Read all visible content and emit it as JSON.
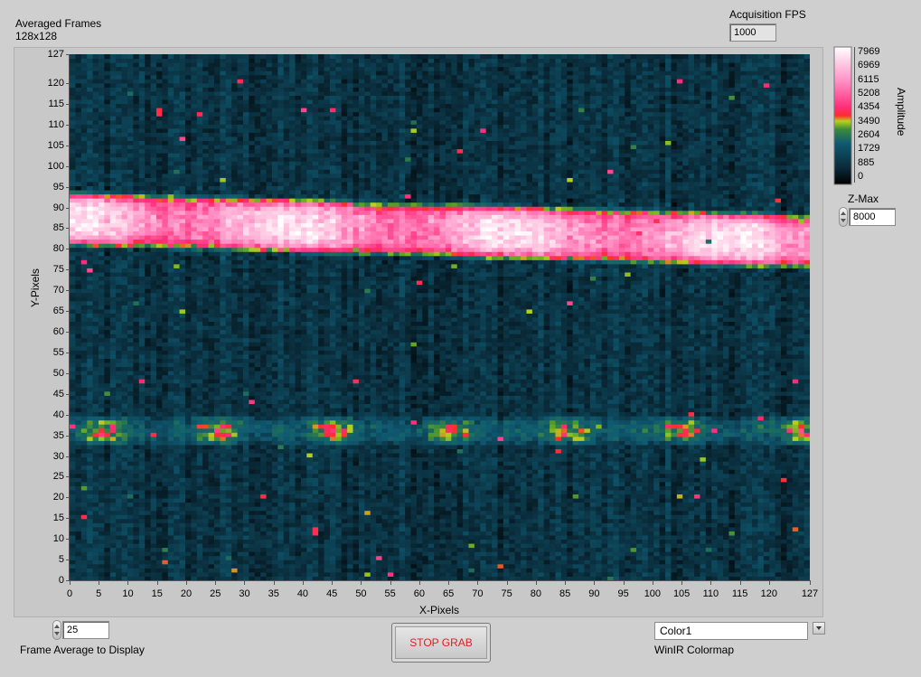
{
  "graph": {
    "title": "Averaged Frames",
    "subtitle": "128x128",
    "x_label": "X-Pixels",
    "y_label": "Y-Pixels",
    "x_ticks": [
      "0",
      "5",
      "10",
      "15",
      "20",
      "25",
      "30",
      "35",
      "40",
      "45",
      "50",
      "55",
      "60",
      "65",
      "70",
      "75",
      "80",
      "85",
      "90",
      "95",
      "100",
      "105",
      "110",
      "115",
      "120",
      "127"
    ],
    "y_ticks": [
      "0",
      "5",
      "10",
      "15",
      "20",
      "25",
      "30",
      "35",
      "40",
      "45",
      "50",
      "55",
      "60",
      "65",
      "70",
      "75",
      "80",
      "85",
      "90",
      "95",
      "100",
      "105",
      "110",
      "115",
      "120",
      "127"
    ]
  },
  "acquisition": {
    "label": "Acquisition FPS",
    "value": "1000"
  },
  "colorbar": {
    "label": "Amplitude",
    "ticks": [
      "7969",
      "6969",
      "6115",
      "5208",
      "4354",
      "3490",
      "2604",
      "1729",
      "885",
      "0"
    ]
  },
  "zmax": {
    "label": "Z-Max",
    "value": "8000"
  },
  "frame_average": {
    "label": "Frame Average to Display",
    "value": "25"
  },
  "stop_button": {
    "label": "STOP GRAB"
  },
  "colormap": {
    "label": "WinIR Colormap",
    "value": "Color1"
  },
  "chart_data": {
    "type": "heatmap",
    "title": "Averaged Frames",
    "subtitle": "128x128",
    "xlabel": "X-Pixels",
    "ylabel": "Y-Pixels",
    "xlim": [
      0,
      127
    ],
    "ylim": [
      0,
      127
    ],
    "zlim": [
      0,
      8000
    ],
    "zlabel": "Amplitude",
    "colormap": "WinIR Color1",
    "bands": [
      {
        "name_visible": false,
        "y_center_left": 87.5,
        "y_center_right": 82,
        "half_width": 7,
        "peak_amplitude": 7500
      },
      {
        "name_visible": false,
        "y_center": 36,
        "half_width": 4,
        "peak_amplitude": 4200
      }
    ],
    "background_amplitude": 1200
  },
  "colors": {
    "panel_bg": "#cfcfcf",
    "background_teal": "#0f4f64",
    "hot_pink": "#ff2d7a",
    "peak_white": "#ffffff",
    "stop_text": "#e02020"
  }
}
